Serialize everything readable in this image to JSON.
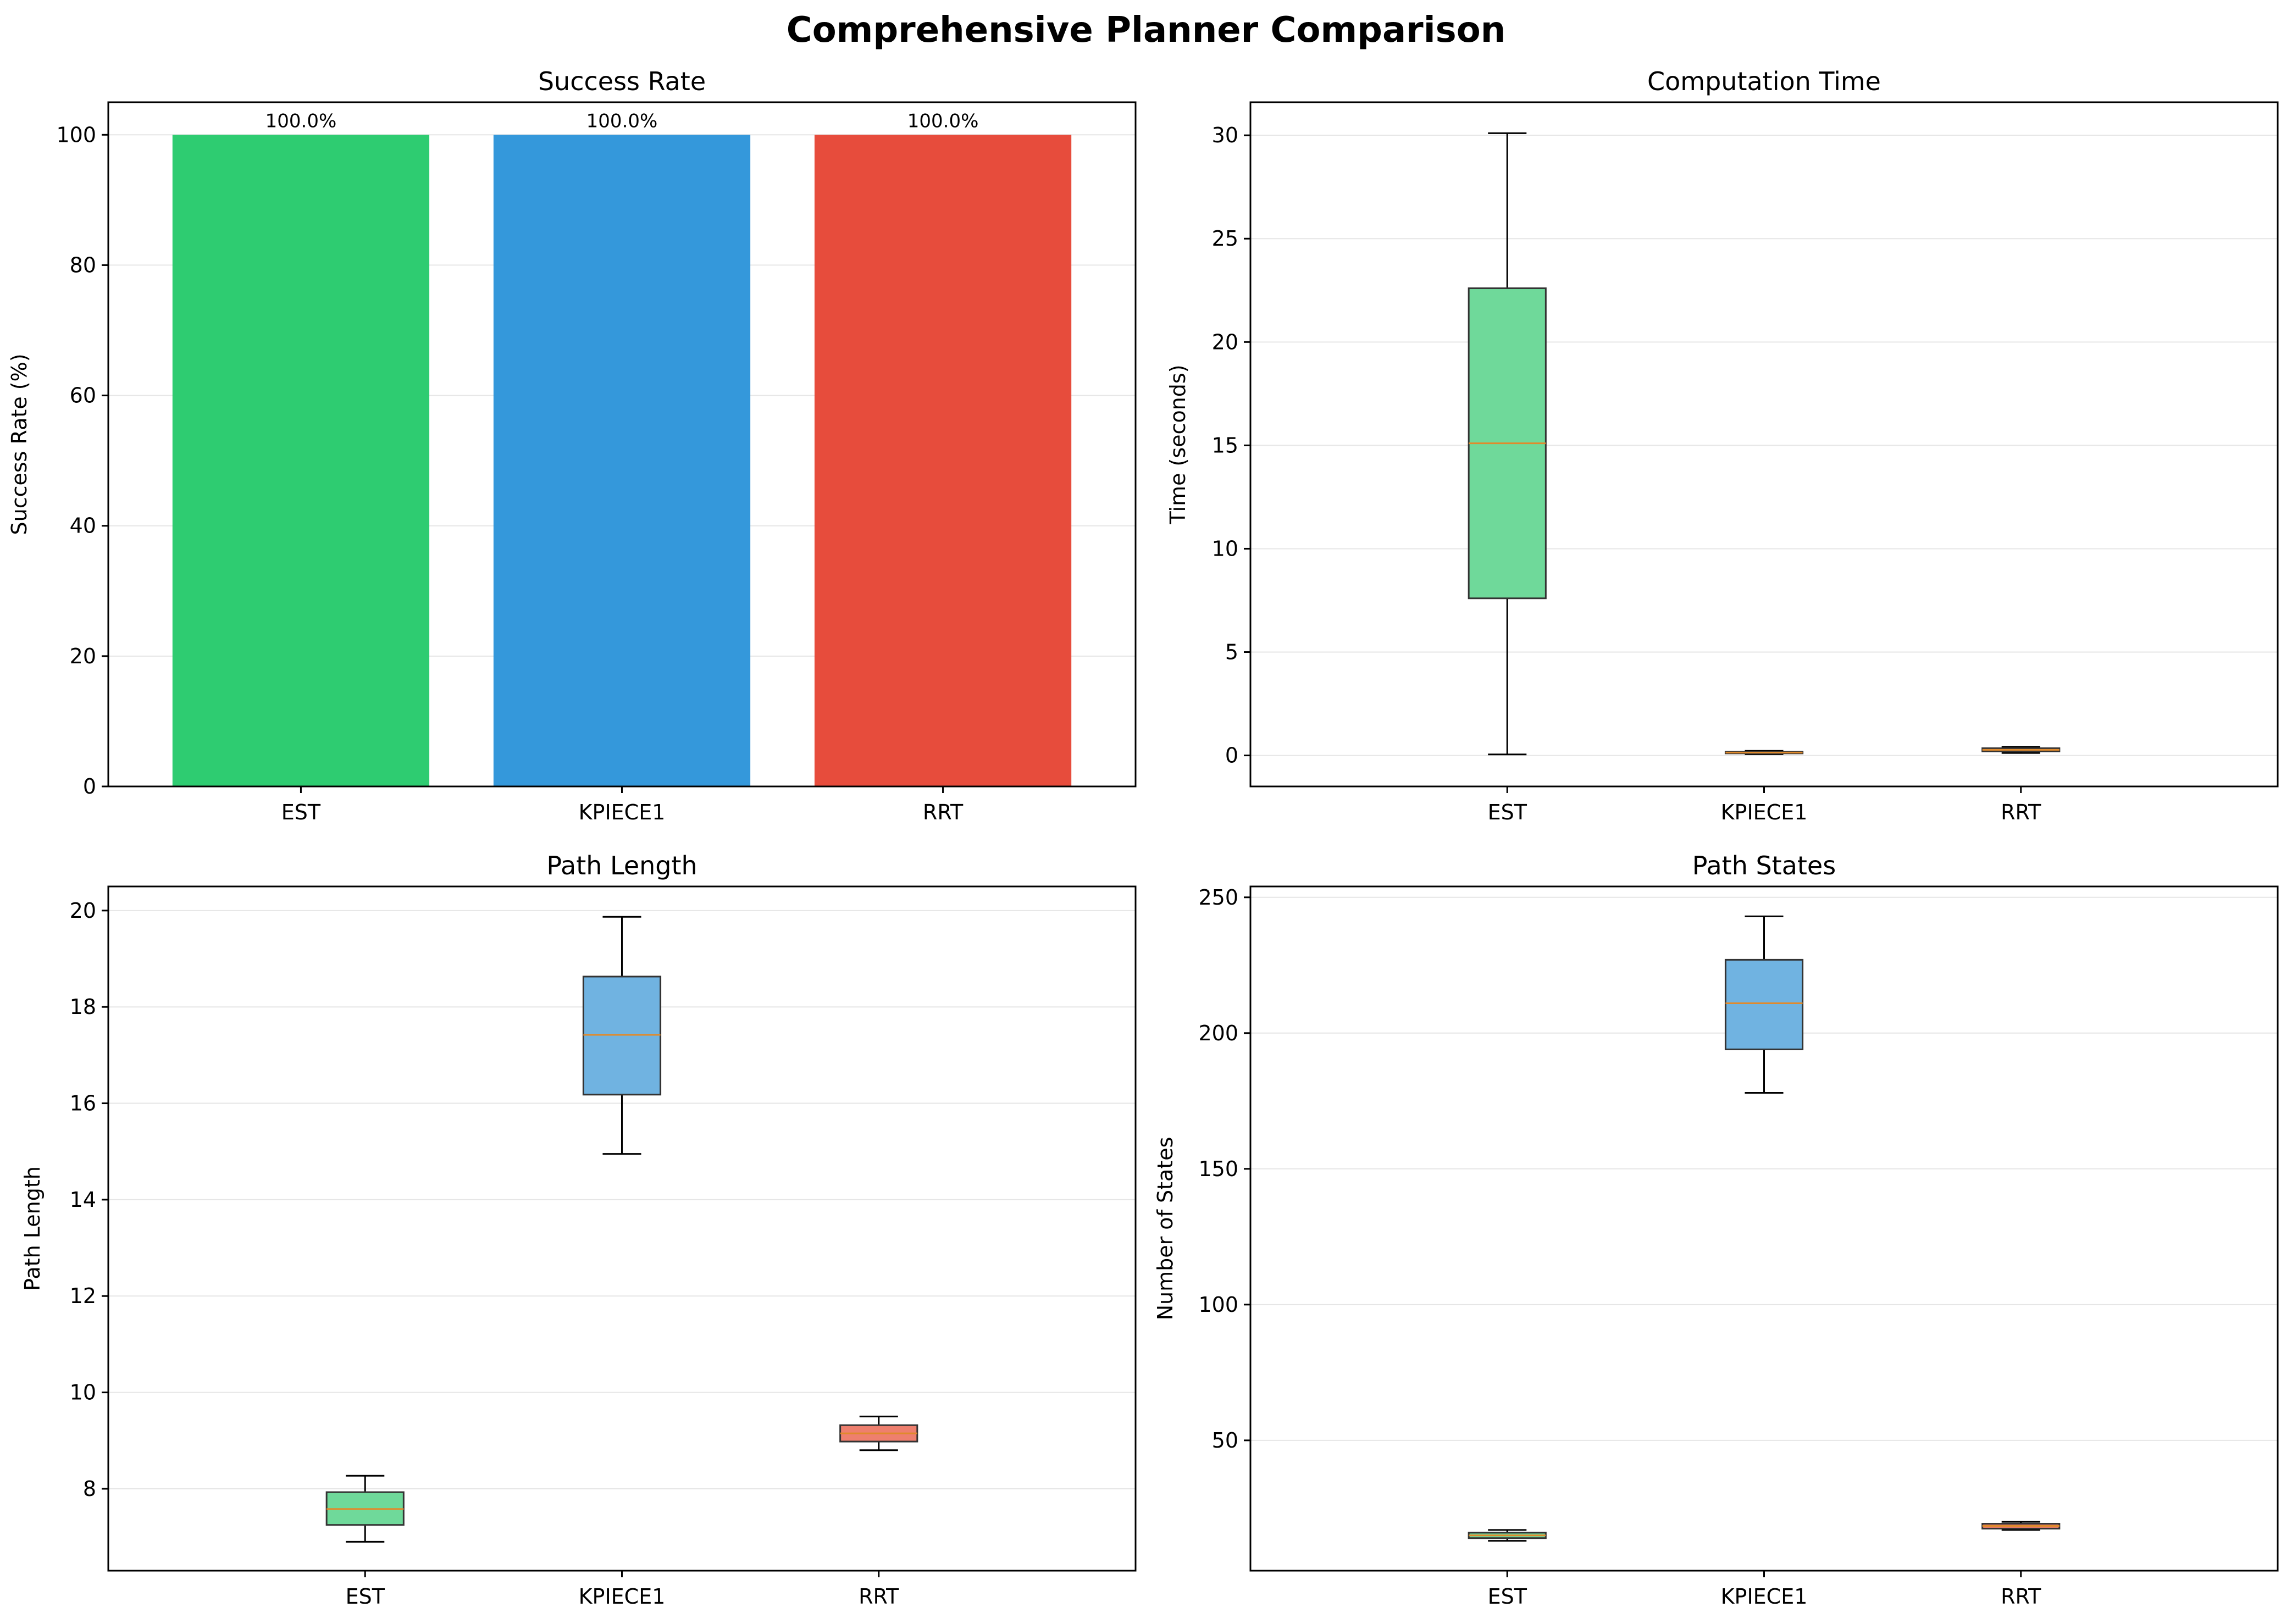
{
  "suptitle": "Comprehensive Planner Comparison",
  "colors": {
    "EST": "#2ecc71",
    "KPIECE1": "#3498db",
    "RRT": "#e74c3c",
    "box_EST": "#6fd99a",
    "box_KPIECE1": "#70b3e1",
    "box_RRT": "#ee7f6e",
    "median": "#e08a2c",
    "grid": "#e6e6e6"
  },
  "chart_data": [
    {
      "id": "success",
      "type": "bar",
      "title": "Success Rate",
      "xlabel": "",
      "ylabel": "Success Rate (%)",
      "categories": [
        "EST",
        "KPIECE1",
        "RRT"
      ],
      "values": [
        100,
        100,
        100
      ],
      "data_labels": [
        "100.0%",
        "100.0%",
        "100.0%"
      ],
      "ylim": [
        0,
        105
      ],
      "yticks": [
        0,
        20,
        40,
        60,
        80,
        100
      ],
      "ytick_labels": [
        "0",
        "20",
        "40",
        "60",
        "80",
        "100"
      ],
      "grid": "y"
    },
    {
      "id": "time",
      "type": "box",
      "title": "Computation Time",
      "xlabel": "",
      "ylabel": "Time (seconds)",
      "categories": [
        "EST",
        "KPIECE1",
        "RRT"
      ],
      "boxes": [
        {
          "whislo": 0.05,
          "q1": 7.6,
          "med": 15.1,
          "q3": 22.6,
          "whishi": 30.1
        },
        {
          "whislo": 0.06,
          "q1": 0.1,
          "med": 0.14,
          "q3": 0.18,
          "whishi": 0.22
        },
        {
          "whislo": 0.12,
          "q1": 0.2,
          "med": 0.27,
          "q3": 0.35,
          "whishi": 0.42
        }
      ],
      "ylim": [
        -1.5,
        31.6
      ],
      "yticks": [
        0,
        5,
        10,
        15,
        20,
        25,
        30
      ],
      "ytick_labels": [
        "0",
        "5",
        "10",
        "15",
        "20",
        "25",
        "30"
      ],
      "grid": "y"
    },
    {
      "id": "length",
      "type": "box",
      "title": "Path Length",
      "xlabel": "",
      "ylabel": "Path Length",
      "categories": [
        "EST",
        "KPIECE1",
        "RRT"
      ],
      "boxes": [
        {
          "whislo": 6.9,
          "q1": 7.25,
          "med": 7.58,
          "q3": 7.93,
          "whishi": 8.27
        },
        {
          "whislo": 14.95,
          "q1": 16.18,
          "med": 17.42,
          "q3": 18.63,
          "whishi": 19.87
        },
        {
          "whislo": 8.8,
          "q1": 8.98,
          "med": 9.15,
          "q3": 9.32,
          "whishi": 9.5
        }
      ],
      "ylim": [
        6.3,
        20.5
      ],
      "yticks": [
        8,
        10,
        12,
        14,
        16,
        18,
        20
      ],
      "ytick_labels": [
        "8",
        "10",
        "12",
        "14",
        "16",
        "18",
        "20"
      ],
      "grid": "y"
    },
    {
      "id": "states",
      "type": "box",
      "title": "Path States",
      "xlabel": "",
      "ylabel": "Number of States",
      "categories": [
        "EST",
        "KPIECE1",
        "RRT"
      ],
      "boxes": [
        {
          "whislo": 13,
          "q1": 14,
          "med": 15,
          "q3": 16,
          "whishi": 17
        },
        {
          "whislo": 178,
          "q1": 194,
          "med": 211,
          "q3": 227,
          "whishi": 243
        },
        {
          "whislo": 17,
          "q1": 17.5,
          "med": 18.5,
          "q3": 19.3,
          "whishi": 20
        }
      ],
      "ylim": [
        2,
        254
      ],
      "yticks": [
        50,
        100,
        150,
        200,
        250
      ],
      "ytick_labels": [
        "50",
        "100",
        "150",
        "200",
        "250"
      ],
      "grid": "y"
    }
  ]
}
